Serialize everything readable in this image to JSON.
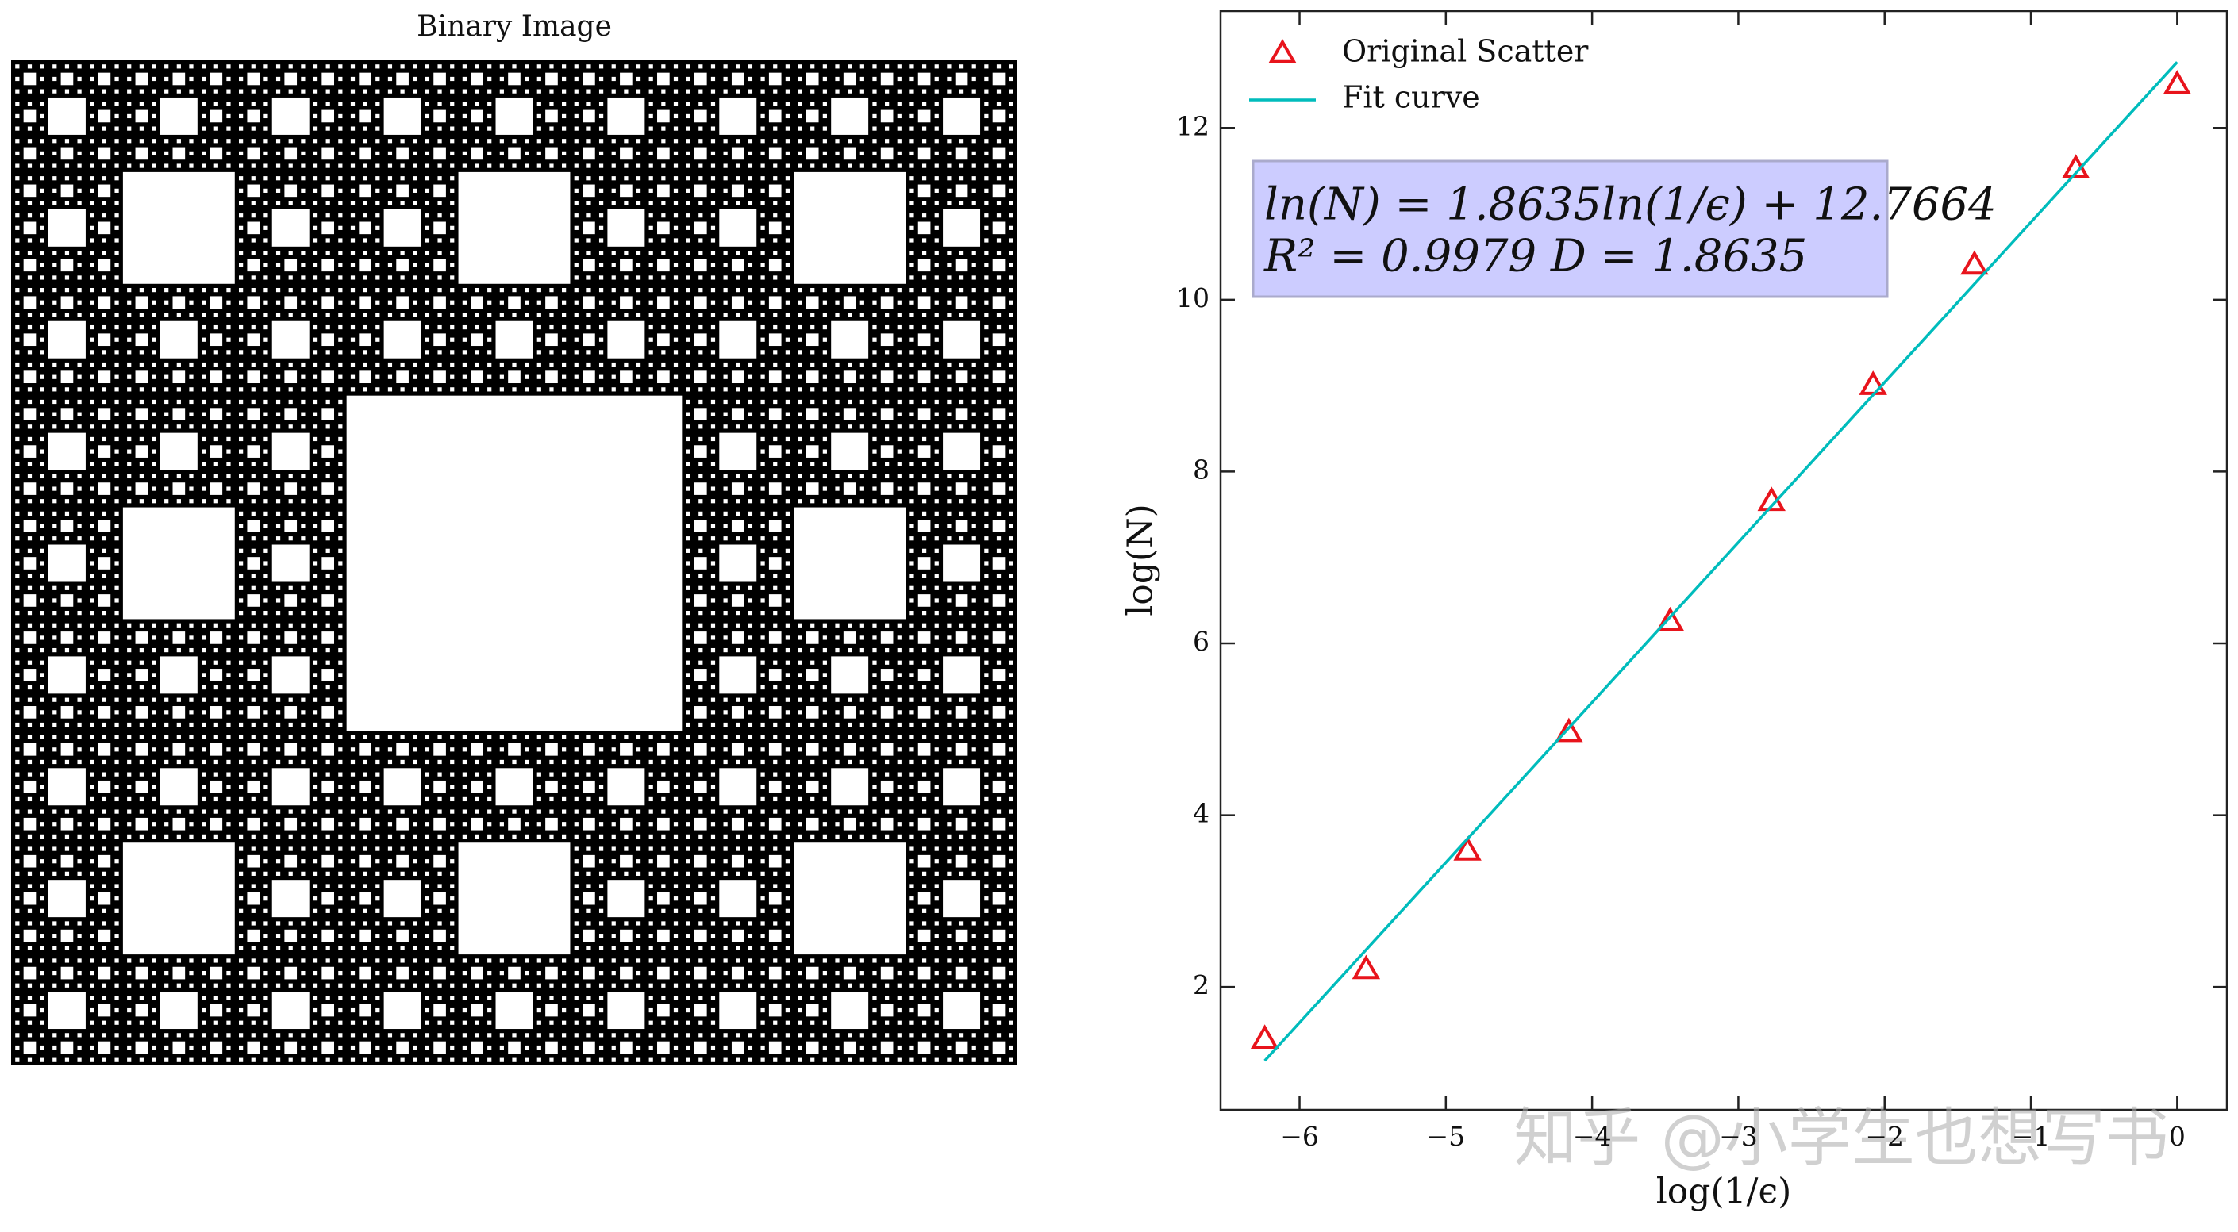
{
  "image_panel": {
    "title": "Binary Image"
  },
  "chart_data": {
    "type": "scatter",
    "xlabel": "log(1/ϵ)",
    "ylabel": "log(N)",
    "xlim": [
      -6.54,
      0.34
    ],
    "ylim": [
      0.57,
      13.36
    ],
    "xticks": [
      {
        "value": -6,
        "label": "−6"
      },
      {
        "value": -5,
        "label": "−5"
      },
      {
        "value": -4,
        "label": "−4"
      },
      {
        "value": -3,
        "label": "−3"
      },
      {
        "value": -2,
        "label": "−2"
      },
      {
        "value": -1,
        "label": "−1"
      },
      0
    ],
    "yticks": [
      2,
      4,
      6,
      8,
      10,
      12
    ],
    "legend": "upper left",
    "series": [
      {
        "name": "Original Scatter",
        "type": "scatter",
        "color": "#e8141c",
        "x": [
          -6.238,
          -5.545,
          -4.852,
          -4.159,
          -3.466,
          -2.773,
          -2.079,
          -1.386,
          -0.693,
          0
        ],
        "values": [
          1.39,
          2.2,
          3.58,
          4.96,
          6.25,
          7.65,
          9.0,
          10.4,
          11.52,
          12.5
        ]
      },
      {
        "name": "Fit curve",
        "type": "line",
        "color": "#00bcbc",
        "x": [
          -6.238,
          0
        ],
        "values": [
          1.1419,
          12.7664
        ]
      }
    ],
    "annotation": [
      "ln(N) = 1.8635ln(1/ϵ) + 12.7664",
      "R² = 0.9979        D = 1.8635"
    ],
    "watermark": "知乎 @小学生也想写书"
  }
}
